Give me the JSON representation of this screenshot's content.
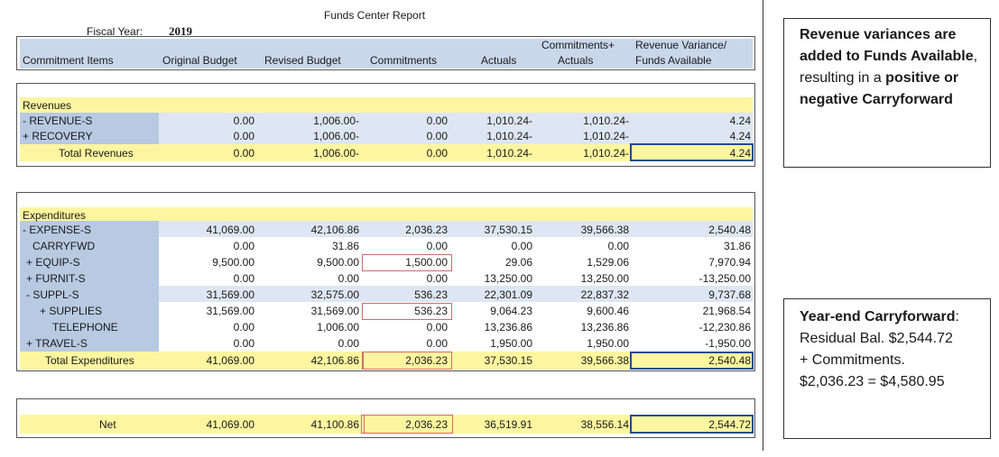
{
  "report": {
    "title": "Funds Center Report",
    "fiscal_year_label": "Fiscal Year:",
    "fiscal_year": "2019",
    "columns": {
      "commitment_items": "Commitment Items",
      "original_budget": "Original Budget",
      "revised_budget": "Revised Budget",
      "commitments": "Commitments",
      "actuals": "Actuals",
      "comm_actuals_1": "Commitments+",
      "comm_actuals_2": "Actuals",
      "variance_1": "Revenue Variance/",
      "variance_2": "Funds Available"
    },
    "revenues": {
      "heading": "Revenues",
      "rows": [
        {
          "label": "- REVENUE-S",
          "orig": "0.00",
          "rev": "1,006.00-",
          "comm": "0.00",
          "act": "1,010.24-",
          "ca": "1,010.24-",
          "var": "4.24"
        },
        {
          "label": "+ RECOVERY",
          "orig": "0.00",
          "rev": "1,006.00-",
          "comm": "0.00",
          "act": "1,010.24-",
          "ca": "1,010.24-",
          "var": "4.24"
        }
      ],
      "total": {
        "label": "Total Revenues",
        "orig": "0.00",
        "rev": "1,006.00-",
        "comm": "0.00",
        "act": "1,010.24-",
        "ca": "1,010.24-",
        "var": "4.24"
      }
    },
    "expenditures": {
      "heading": "Expenditures",
      "rows": [
        {
          "label": "- EXPENSE-S",
          "orig": "41,069.00",
          "rev": "42,106.86",
          "comm": "2,036.23",
          "act": "37,530.15",
          "ca": "39,566.38",
          "var": "2,540.48"
        },
        {
          "label": "CARRYFWD",
          "orig": "0.00",
          "rev": "31.86",
          "comm": "0.00",
          "act": "0.00",
          "ca": "0.00",
          "var": "31.86"
        },
        {
          "label": "+ EQUIP-S",
          "orig": "9,500.00",
          "rev": "9,500.00",
          "comm": "1,500.00",
          "act": "29.06",
          "ca": "1,529.06",
          "var": "7,970.94"
        },
        {
          "label": "+ FURNIT-S",
          "orig": "0.00",
          "rev": "0.00",
          "comm": "0.00",
          "act": "13,250.00",
          "ca": "13,250.00",
          "var": "-13,250.00"
        },
        {
          "label": "- SUPPL-S",
          "orig": "31,569.00",
          "rev": "32,575.00",
          "comm": "536.23",
          "act": "22,301.09",
          "ca": "22,837.32",
          "var": "9,737.68"
        },
        {
          "label": "+ SUPPLIES",
          "orig": "31,569.00",
          "rev": "31,569.00",
          "comm": "536.23",
          "act": "9,064.23",
          "ca": "9,600.46",
          "var": "21,968.54"
        },
        {
          "label": "TELEPHONE",
          "orig": "0.00",
          "rev": "1,006.00",
          "comm": "0.00",
          "act": "13,236.86",
          "ca": "13,236.86",
          "var": "-12,230.86"
        },
        {
          "label": "+ TRAVEL-S",
          "orig": "0.00",
          "rev": "0.00",
          "comm": "0.00",
          "act": "1,950.00",
          "ca": "1,950.00",
          "var": "-1,950.00"
        }
      ],
      "total": {
        "label": "Total Expenditures",
        "orig": "41,069.00",
        "rev": "42,106.86",
        "comm": "2,036.23",
        "act": "37,530.15",
        "ca": "39,566.38",
        "var": "2,540.48"
      }
    },
    "net": {
      "label": "Net",
      "orig": "41,069.00",
      "rev": "41,100.86",
      "comm": "2,036.23",
      "act": "36,519.91",
      "ca": "38,556.14",
      "var": "2,544.72"
    }
  },
  "notes": {
    "revenue": {
      "b1": "Revenue variances are added to Funds Available",
      "t1": ", resulting in a ",
      "b2": "positive or negative Carryforward"
    },
    "carryforward": {
      "title": "Year-end Carryforward",
      "colon": ":",
      "line1": "Residual Bal. $2,544.72",
      "line2": "+ Commitments.",
      "line3": "$2,036.23 = $4,580.95"
    }
  }
}
